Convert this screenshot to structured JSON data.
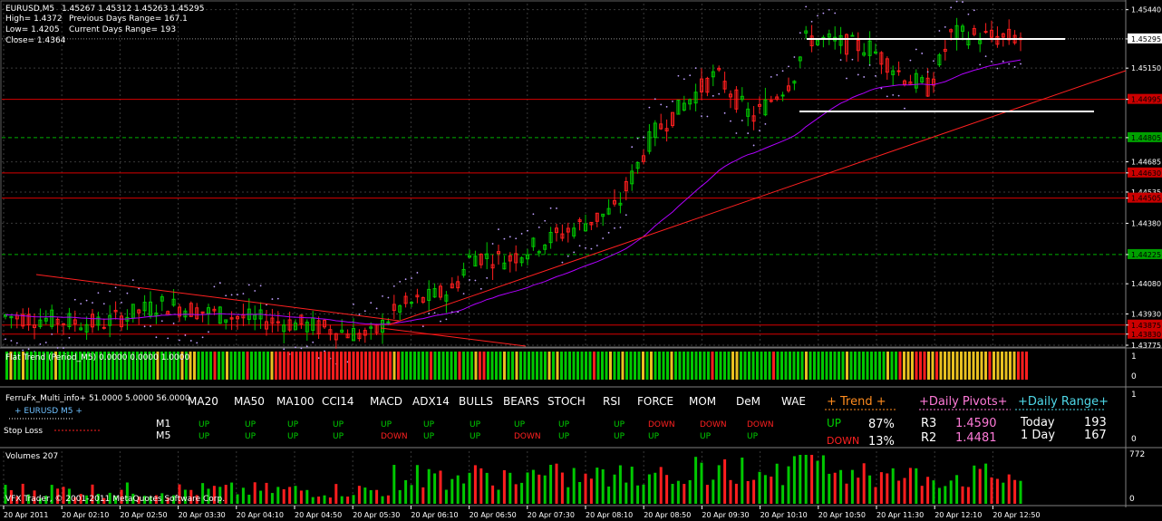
{
  "window": {
    "symbol_tf": "EURUSD,M5",
    "ohlc": "1.45267 1.45312 1.45263 1.45295"
  },
  "info": {
    "high": "High= 1.4372",
    "prev_range": "Previous Days Range= 167.1",
    "low": "Low= 1.4205",
    "cur_range": "Current Days Range= 193",
    "close": "Close= 1.4364"
  },
  "price_axis": {
    "ticks": [
      "1.45440",
      "1.45295",
      "1.45150",
      "1.44995",
      "1.44805",
      "1.44685",
      "1.44630",
      "1.44535",
      "1.44505",
      "1.44380",
      "1.44225",
      "1.44080",
      "1.43930",
      "1.43875",
      "1.43830",
      "1.43775"
    ],
    "current_price": "1.45295",
    "red_labels": [
      "1.44995",
      "1.44630",
      "1.44505",
      "1.43875",
      "1.43830"
    ],
    "green_labels": [
      "1.44805",
      "1.44225"
    ]
  },
  "colors": {
    "up": "#00c800",
    "down": "#ff1e1e",
    "neutral": "#e8c020",
    "hline_red": "#d80000",
    "hline_green": "#00b000",
    "ma": "#b000ff",
    "psar": "#c0a0ff",
    "trend": "#ff2020",
    "grid": "#3a3a3a"
  },
  "flat_trend": {
    "label": "Flat Trend (Period_M5) 0.0000 0.0000 1.0000",
    "scale_top": "1",
    "scale_bottom": "0"
  },
  "multi_info": {
    "title": "FerruFx_Multi_info+ 51.0000 5.0000 56.0000",
    "pair": "+ EURUSD M5 +",
    "stop_loss": "Stop Loss",
    "scale_top": "1",
    "scale_bottom": "0",
    "headers": [
      "MA20",
      "MA50",
      "MA100",
      "CCI14",
      "MACD",
      "ADX14",
      "BULLS",
      "BEARS",
      "STOCH",
      "RSI",
      "FORCE",
      "MOM",
      "DeM",
      "WAE"
    ],
    "rows": [
      {
        "tf": "M1",
        "values": [
          "UP",
          "UP",
          "UP",
          "UP",
          "UP",
          "UP",
          "UP",
          "UP",
          "UP",
          "UP",
          "DOWN",
          "DOWN",
          "DOWN",
          ""
        ]
      },
      {
        "tf": "M5",
        "values": [
          "UP",
          "UP",
          "UP",
          "UP",
          "DOWN",
          "UP",
          "UP",
          "DOWN",
          "UP",
          "UP",
          "UP",
          "UP",
          "UP",
          ""
        ]
      }
    ],
    "trend": {
      "title": "+  Trend  +",
      "up_label": "UP",
      "up_pct": "87%",
      "down_label": "DOWN",
      "down_pct": "13%"
    },
    "pivots": {
      "title": "+Daily Pivots+",
      "r3_label": "R3",
      "r3": "1.4590",
      "r2_label": "R2",
      "r2": "1.4481"
    },
    "range": {
      "title": "+Daily Range+",
      "today_label": "Today",
      "today": "193",
      "day_label": "1 Day",
      "day": "167"
    }
  },
  "volumes": {
    "label": "Volumes 207",
    "scale_top": "772",
    "scale_bottom": "0",
    "copyright": "VFX Trader, © 2001-2011 MetaQuotes Software Corp."
  },
  "time_axis": [
    "20 Apr 2011",
    "20 Apr 02:10",
    "20 Apr 02:50",
    "20 Apr 03:30",
    "20 Apr 04:10",
    "20 Apr 04:50",
    "20 Apr 05:30",
    "20 Apr 06:10",
    "20 Apr 06:50",
    "20 Apr 07:30",
    "20 Apr 08:10",
    "20 Apr 08:50",
    "20 Apr 09:30",
    "20 Apr 10:10",
    "20 Apr 10:50",
    "20 Apr 11:30",
    "20 Apr 12:10",
    "20 Apr 12:50"
  ]
}
